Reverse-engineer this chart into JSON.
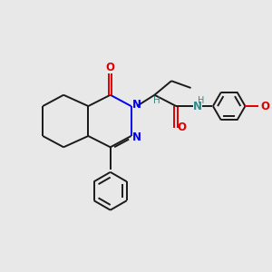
{
  "bg_color": "#e8e8e8",
  "bond_color": "#1a1a1a",
  "N_color": "#0000ee",
  "O_color": "#dd0000",
  "NH_color": "#2e8b8b",
  "H_color": "#2e8b8b",
  "figsize": [
    3.0,
    3.0
  ],
  "dpi": 100,
  "xlim": [
    0,
    10
  ],
  "ylim": [
    0,
    10
  ]
}
